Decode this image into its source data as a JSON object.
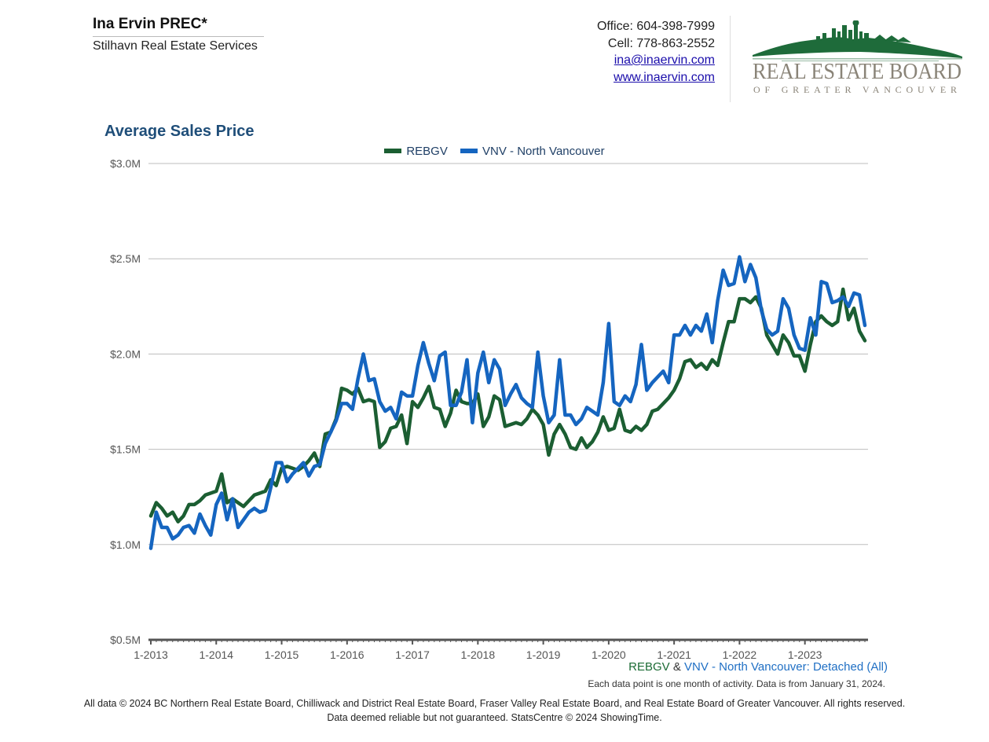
{
  "agent": {
    "name": "Ina Ervin PREC*",
    "company": "Stilhavn Real Estate Services"
  },
  "contact": {
    "office": "Office: 604-398-7999",
    "cell": "Cell: 778-863-2552",
    "email": "ina@inaervin.com",
    "website": "www.inaervin.com"
  },
  "logo": {
    "line1": "REAL ESTATE BOARD",
    "line2": "OF GREATER VANCOUVER",
    "colors": {
      "skyline": "#1e6b3a",
      "text": "#8a8478"
    }
  },
  "colors": {
    "rebgv": "#1b5e32",
    "vnv": "#1565c0",
    "grid": "#bdbdbd",
    "axis": "#555555"
  },
  "chart_data": {
    "type": "line",
    "title": "Average Sales Price",
    "x": [
      "1-2013",
      "2-2013",
      "3-2013",
      "4-2013",
      "5-2013",
      "6-2013",
      "7-2013",
      "8-2013",
      "9-2013",
      "10-2013",
      "11-2013",
      "12-2013",
      "1-2014",
      "2-2014",
      "3-2014",
      "4-2014",
      "5-2014",
      "6-2014",
      "7-2014",
      "8-2014",
      "9-2014",
      "10-2014",
      "11-2014",
      "12-2014",
      "1-2015",
      "2-2015",
      "3-2015",
      "4-2015",
      "5-2015",
      "6-2015",
      "7-2015",
      "8-2015",
      "9-2015",
      "10-2015",
      "11-2015",
      "12-2015",
      "1-2016",
      "2-2016",
      "3-2016",
      "4-2016",
      "5-2016",
      "6-2016",
      "7-2016",
      "8-2016",
      "9-2016",
      "10-2016",
      "11-2016",
      "12-2016",
      "1-2017",
      "2-2017",
      "3-2017",
      "4-2017",
      "5-2017",
      "6-2017",
      "7-2017",
      "8-2017",
      "9-2017",
      "10-2017",
      "11-2017",
      "12-2017",
      "1-2018",
      "2-2018",
      "3-2018",
      "4-2018",
      "5-2018",
      "6-2018",
      "7-2018",
      "8-2018",
      "9-2018",
      "10-2018",
      "11-2018",
      "12-2018",
      "1-2019",
      "2-2019",
      "3-2019",
      "4-2019",
      "5-2019",
      "6-2019",
      "7-2019",
      "8-2019",
      "9-2019",
      "10-2019",
      "11-2019",
      "12-2019",
      "1-2020",
      "2-2020",
      "3-2020",
      "4-2020",
      "5-2020",
      "6-2020",
      "7-2020",
      "8-2020",
      "9-2020",
      "10-2020",
      "11-2020",
      "12-2020",
      "1-2021",
      "2-2021",
      "3-2021",
      "4-2021",
      "5-2021",
      "6-2021",
      "7-2021",
      "8-2021",
      "9-2021",
      "10-2021",
      "11-2021",
      "12-2021",
      "1-2022",
      "2-2022",
      "3-2022",
      "4-2022",
      "5-2022",
      "6-2022",
      "7-2022",
      "8-2022",
      "9-2022",
      "10-2022",
      "11-2022",
      "12-2022",
      "1-2023",
      "2-2023",
      "3-2023",
      "4-2023",
      "5-2023",
      "6-2023",
      "7-2023",
      "8-2023",
      "9-2023",
      "10-2023",
      "11-2023",
      "12-2023"
    ],
    "x_tick_labels": [
      "1-2013",
      "1-2014",
      "1-2015",
      "1-2016",
      "1-2017",
      "1-2018",
      "1-2019",
      "1-2020",
      "1-2021",
      "1-2022",
      "1-2023"
    ],
    "y_ticks": [
      0.5,
      1.0,
      1.5,
      2.0,
      2.5,
      3.0
    ],
    "y_tick_labels": [
      "$0.5M",
      "$1.0M",
      "$1.5M",
      "$2.0M",
      "$2.5M",
      "$3.0M"
    ],
    "ylim": [
      0.5,
      3.0
    ],
    "y_unit": "$M",
    "grid": true,
    "legend_position": "top-center",
    "series": [
      {
        "name": "REBGV",
        "color": "#1b5e32",
        "values": [
          1.15,
          1.22,
          1.19,
          1.15,
          1.17,
          1.12,
          1.15,
          1.21,
          1.21,
          1.23,
          1.26,
          1.27,
          1.28,
          1.37,
          1.22,
          1.24,
          1.22,
          1.2,
          1.23,
          1.26,
          1.27,
          1.28,
          1.34,
          1.31,
          1.4,
          1.41,
          1.4,
          1.39,
          1.41,
          1.44,
          1.48,
          1.41,
          1.58,
          1.59,
          1.66,
          1.82,
          1.81,
          1.79,
          1.82,
          1.75,
          1.76,
          1.75,
          1.51,
          1.54,
          1.61,
          1.62,
          1.68,
          1.53,
          1.75,
          1.72,
          1.77,
          1.83,
          1.72,
          1.71,
          1.62,
          1.69,
          1.81,
          1.75,
          1.74,
          1.74,
          1.79,
          1.62,
          1.67,
          1.78,
          1.76,
          1.62,
          1.63,
          1.64,
          1.63,
          1.66,
          1.71,
          1.68,
          1.63,
          1.47,
          1.58,
          1.63,
          1.58,
          1.51,
          1.5,
          1.56,
          1.51,
          1.54,
          1.59,
          1.67,
          1.6,
          1.61,
          1.71,
          1.6,
          1.59,
          1.62,
          1.6,
          1.63,
          1.7,
          1.71,
          1.74,
          1.77,
          1.81,
          1.87,
          1.96,
          1.97,
          1.93,
          1.95,
          1.92,
          1.97,
          1.94,
          2.06,
          2.17,
          2.17,
          2.29,
          2.29,
          2.27,
          2.3,
          2.24,
          2.1,
          2.05,
          2.0,
          2.1,
          2.06,
          1.99,
          1.99,
          1.91,
          2.05,
          2.17,
          2.2,
          2.17,
          2.15,
          2.17,
          2.34,
          2.18,
          2.24,
          2.12,
          2.07
        ]
      },
      {
        "name": "VNV - North Vancouver",
        "color": "#1565c0",
        "values": [
          0.98,
          1.17,
          1.09,
          1.09,
          1.03,
          1.05,
          1.09,
          1.1,
          1.06,
          1.16,
          1.1,
          1.05,
          1.21,
          1.27,
          1.13,
          1.24,
          1.09,
          1.13,
          1.17,
          1.19,
          1.17,
          1.18,
          1.3,
          1.43,
          1.43,
          1.33,
          1.37,
          1.4,
          1.43,
          1.36,
          1.41,
          1.42,
          1.53,
          1.59,
          1.65,
          1.74,
          1.74,
          1.71,
          1.87,
          2.0,
          1.86,
          1.87,
          1.75,
          1.7,
          1.72,
          1.66,
          1.8,
          1.78,
          1.78,
          1.94,
          2.06,
          1.95,
          1.86,
          1.99,
          2.01,
          1.73,
          1.73,
          1.8,
          1.97,
          1.64,
          1.9,
          2.01,
          1.85,
          1.97,
          1.92,
          1.73,
          1.79,
          1.84,
          1.77,
          1.74,
          1.72,
          2.01,
          1.78,
          1.64,
          1.68,
          1.97,
          1.68,
          1.68,
          1.63,
          1.66,
          1.72,
          1.7,
          1.68,
          1.85,
          2.16,
          1.75,
          1.73,
          1.78,
          1.75,
          1.84,
          2.05,
          1.81,
          1.85,
          1.88,
          1.91,
          1.85,
          2.1,
          2.1,
          2.15,
          2.1,
          2.15,
          2.12,
          2.21,
          2.06,
          2.28,
          2.44,
          2.36,
          2.37,
          2.51,
          2.38,
          2.47,
          2.4,
          2.23,
          2.13,
          2.1,
          2.12,
          2.29,
          2.24,
          2.1,
          2.03,
          2.02,
          2.19,
          2.1,
          2.38,
          2.37,
          2.27,
          2.28,
          2.3,
          2.25,
          2.32,
          2.31,
          2.15
        ]
      }
    ]
  },
  "series_label": {
    "rebgv": "REBGV",
    "amp": " & ",
    "rest": "VNV - North Vancouver: Detached (All)"
  },
  "note": "Each data point is one month of activity. Data is from January 31, 2024.",
  "footer": {
    "line1": "All data © 2024 BC Northern Real Estate Board, Chilliwack and District Real Estate Board, Fraser Valley Real Estate Board, and Real Estate Board of Greater Vancouver. All rights reserved.",
    "line2": "Data deemed reliable but not guaranteed. StatsCentre © 2024 ShowingTime."
  }
}
